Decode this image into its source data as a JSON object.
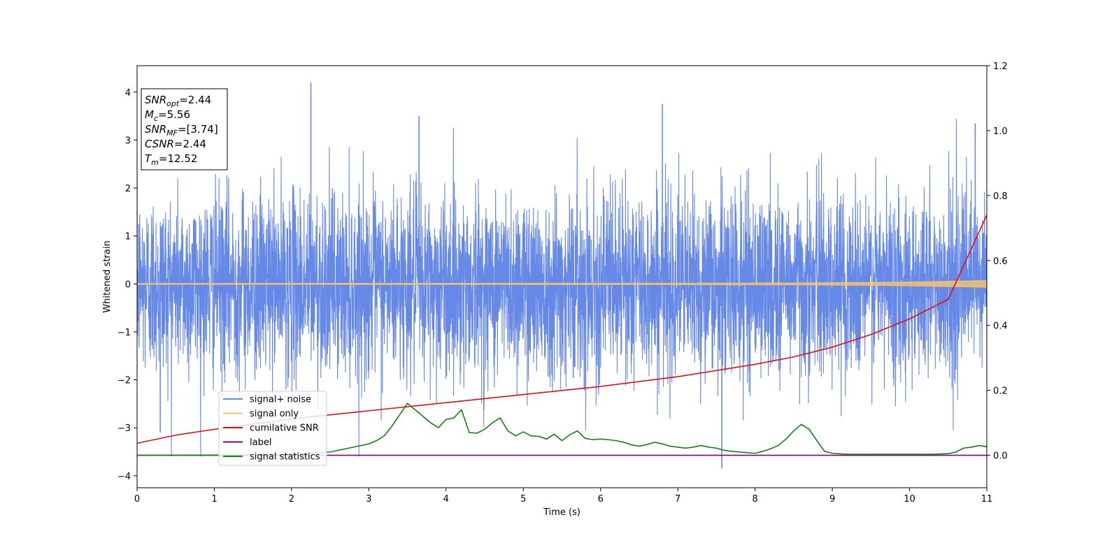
{
  "chart_data": {
    "type": "line",
    "xlabel": "Time (s)",
    "ylabel": "Whitened strain",
    "xlim": [
      0,
      11
    ],
    "ylim": [
      -4.25,
      4.55
    ],
    "ylim_right": [
      -0.1,
      1.2
    ],
    "x_ticks": [
      "0",
      "1",
      "2",
      "3",
      "4",
      "5",
      "6",
      "7",
      "8",
      "9",
      "10",
      "11"
    ],
    "y_ticks_left": [
      "−4",
      "−3",
      "−2",
      "−1",
      "0",
      "1",
      "2",
      "3",
      "4"
    ],
    "y_ticks_right": [
      "0.0",
      "0.2",
      "0.4",
      "0.6",
      "0.8",
      "1.0",
      "1.2"
    ],
    "grid": false,
    "legend_position": "lower-left",
    "info_box": [
      {
        "var": "SNR",
        "sub": "opt",
        "value": "=2.44"
      },
      {
        "var": "M",
        "sub": "c",
        "value": "=5.56"
      },
      {
        "var": "SNR",
        "sub": "MF",
        "value": "=[3.74]"
      },
      {
        "var": "CSNR",
        "sub": "",
        "value": "=2.44"
      },
      {
        "var": "T",
        "sub": "m",
        "value": "=12.52"
      }
    ],
    "series": [
      {
        "name": "signal+ noise",
        "color": "#6688e6",
        "axis": "left",
        "style": "gaussian-noise",
        "noise_std": 0.95,
        "notable_peaks": [
          [
            2.25,
            4.2
          ],
          [
            6.8,
            3.75
          ],
          [
            3.65,
            3.5
          ],
          [
            10.85,
            3.35
          ],
          [
            7.57,
            -3.85
          ],
          [
            0.3,
            -3.1
          ]
        ]
      },
      {
        "name": "signal only",
        "color": "#f6c26b",
        "axis": "left",
        "x": [
          0,
          4,
          7,
          8.5,
          9.5,
          10.2,
          11
        ],
        "amplitude": [
          0.01,
          0.012,
          0.015,
          0.02,
          0.03,
          0.045,
          0.07
        ]
      },
      {
        "name": "cumilative SNR",
        "color": "#e01010",
        "axis": "right",
        "x": [
          0,
          0.5,
          1,
          2,
          3,
          4,
          5,
          6,
          7,
          8,
          8.5,
          9,
          9.5,
          10,
          10.5,
          11
        ],
        "values": [
          0.037,
          0.062,
          0.08,
          0.112,
          0.137,
          0.162,
          0.187,
          0.212,
          0.242,
          0.28,
          0.303,
          0.333,
          0.372,
          0.42,
          0.48,
          0.74
        ]
      },
      {
        "name": "label",
        "color": "#800080",
        "axis": "right",
        "x": [
          0,
          11
        ],
        "values": [
          0,
          0
        ]
      },
      {
        "name": "signal statistics",
        "color": "#128012",
        "axis": "right",
        "x": [
          0,
          1.5,
          2.0,
          2.5,
          2.7,
          3.0,
          3.1,
          3.2,
          3.3,
          3.4,
          3.5,
          3.6,
          3.7,
          3.8,
          3.9,
          4.0,
          4.1,
          4.2,
          4.3,
          4.4,
          4.5,
          4.6,
          4.7,
          4.8,
          4.9,
          5.0,
          5.1,
          5.2,
          5.3,
          5.4,
          5.5,
          5.6,
          5.7,
          5.8,
          5.9,
          6.0,
          6.1,
          6.2,
          6.3,
          6.4,
          6.5,
          6.6,
          6.7,
          6.8,
          6.9,
          7.0,
          7.1,
          7.2,
          7.3,
          7.4,
          7.5,
          7.6,
          7.7,
          7.8,
          7.9,
          8.0,
          8.1,
          8.2,
          8.3,
          8.4,
          8.5,
          8.6,
          8.7,
          8.8,
          8.9,
          9.0,
          9.2,
          9.5,
          10.0,
          10.3,
          10.5,
          10.6,
          10.7,
          10.8,
          10.9,
          11.0
        ],
        "values": [
          0.0,
          0.001,
          0.003,
          0.01,
          0.02,
          0.035,
          0.045,
          0.06,
          0.09,
          0.125,
          0.16,
          0.14,
          0.12,
          0.1,
          0.085,
          0.11,
          0.115,
          0.14,
          0.07,
          0.068,
          0.08,
          0.1,
          0.115,
          0.075,
          0.06,
          0.072,
          0.06,
          0.058,
          0.05,
          0.065,
          0.045,
          0.063,
          0.075,
          0.052,
          0.048,
          0.05,
          0.048,
          0.045,
          0.04,
          0.032,
          0.028,
          0.033,
          0.04,
          0.035,
          0.028,
          0.025,
          0.022,
          0.025,
          0.03,
          0.025,
          0.022,
          0.015,
          0.012,
          0.01,
          0.008,
          0.006,
          0.012,
          0.02,
          0.03,
          0.05,
          0.075,
          0.095,
          0.08,
          0.045,
          0.012,
          0.006,
          0.003,
          0.003,
          0.003,
          0.003,
          0.005,
          0.01,
          0.022,
          0.025,
          0.03,
          0.026
        ]
      }
    ]
  }
}
